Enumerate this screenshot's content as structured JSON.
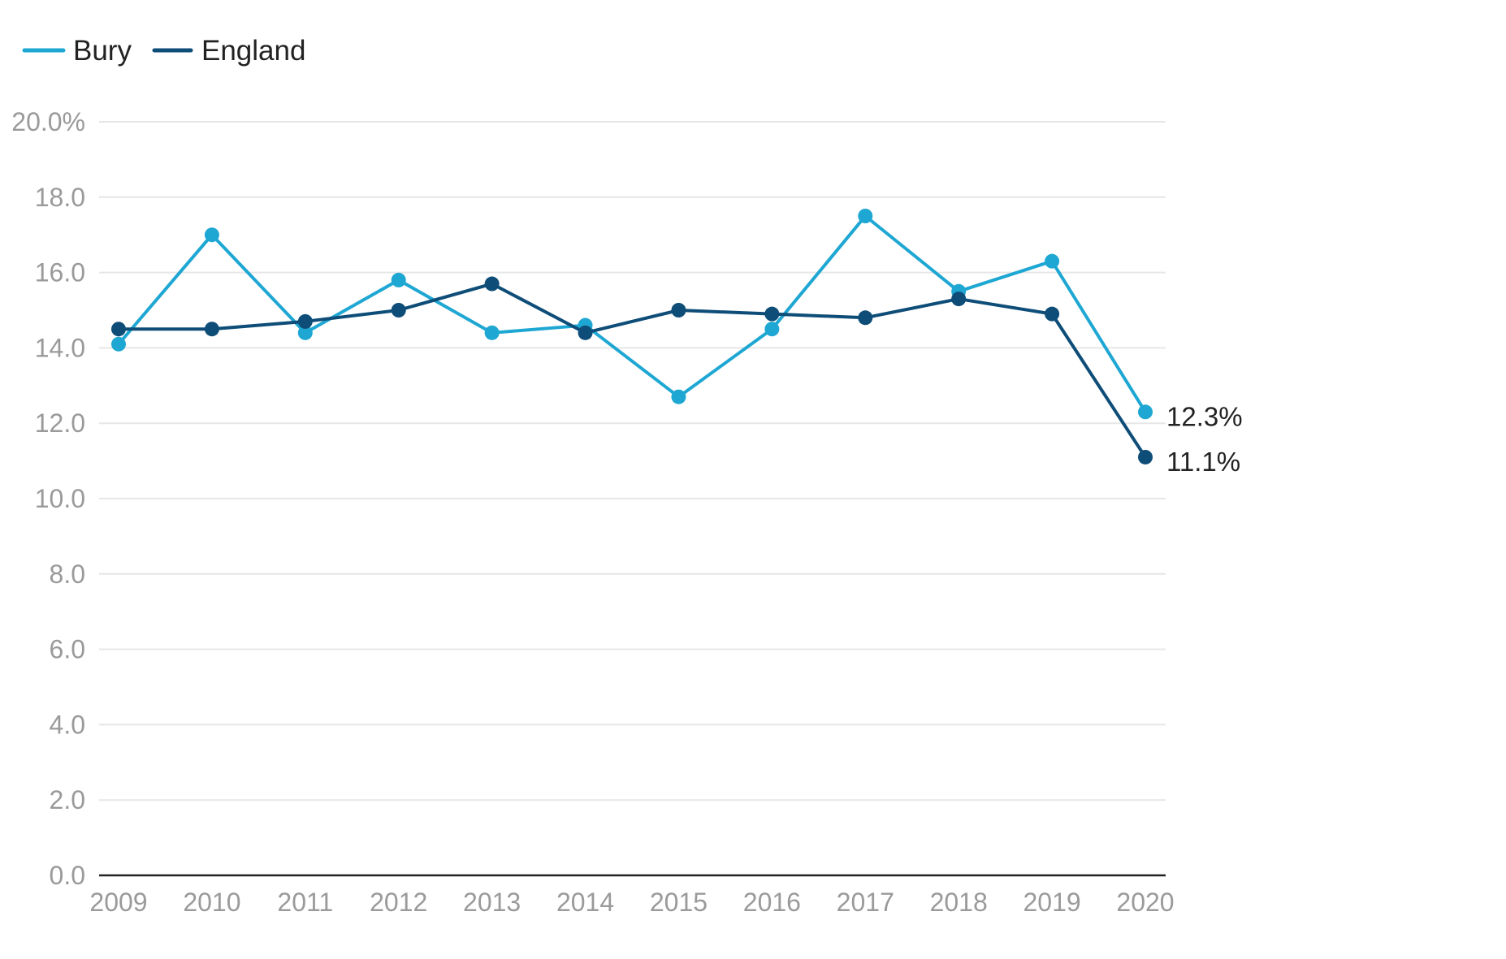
{
  "chart_data": {
    "type": "line",
    "title": "",
    "xlabel": "",
    "ylabel": "",
    "categories": [
      "2009",
      "2010",
      "2011",
      "2012",
      "2013",
      "2014",
      "2015",
      "2016",
      "2017",
      "2018",
      "2019",
      "2020"
    ],
    "y_ticks": [
      "0.0",
      "2.0",
      "4.0",
      "6.0",
      "8.0",
      "10.0",
      "12.0",
      "14.0",
      "16.0",
      "18.0",
      "20.0%"
    ],
    "ylim": [
      0,
      20
    ],
    "grid": true,
    "legend_position": "top-left",
    "series": [
      {
        "name": "Bury",
        "color": "#1ea7d3",
        "values": [
          14.1,
          17.0,
          14.4,
          15.8,
          14.4,
          14.6,
          12.7,
          14.5,
          17.5,
          15.5,
          16.3,
          12.3
        ],
        "end_label": "12.3%"
      },
      {
        "name": "England",
        "color": "#0e4d78",
        "values": [
          14.5,
          14.5,
          14.7,
          15.0,
          15.7,
          14.4,
          15.0,
          14.9,
          14.8,
          15.3,
          14.9,
          11.1
        ],
        "end_label": "11.1%"
      }
    ]
  }
}
